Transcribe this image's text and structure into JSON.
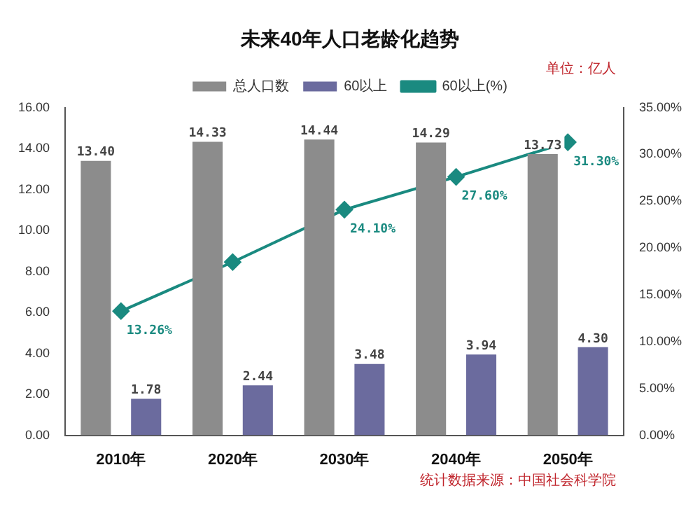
{
  "chart_data": {
    "type": "bar",
    "title": "未来40年人口老龄化趋势",
    "categories": [
      "2010年",
      "2020年",
      "2030年",
      "2040年",
      "2050年"
    ],
    "series": [
      {
        "name": "总人口数",
        "color": "#8c8c8c",
        "values": [
          13.4,
          14.33,
          14.44,
          14.29,
          13.73
        ],
        "value_labels": [
          "13.40",
          "14.33",
          "14.44",
          "14.29",
          "13.73"
        ]
      },
      {
        "name": "60以上",
        "color": "#6b6b9e",
        "values": [
          1.78,
          2.44,
          3.48,
          3.94,
          4.3
        ],
        "value_labels": [
          "1.78",
          "2.44",
          "3.48",
          "3.94",
          "4.30"
        ]
      },
      {
        "name": "60以上(%)",
        "type": "line",
        "axis": "y2",
        "color": "#1a8a80",
        "marker": "diamond",
        "values": [
          13.26,
          18.5,
          24.1,
          27.6,
          31.3
        ],
        "value_labels": [
          "13.26%",
          null,
          "24.10%",
          "27.60%",
          "31.30%"
        ]
      }
    ],
    "ylim": [
      0,
      16
    ],
    "yticks": [
      {
        "value": 0,
        "label": "0.00"
      },
      {
        "value": 2,
        "label": "2.00"
      },
      {
        "value": 4,
        "label": "4.00"
      },
      {
        "value": 6,
        "label": "6.00"
      },
      {
        "value": 8,
        "label": "8.00"
      },
      {
        "value": 10,
        "label": "10.00"
      },
      {
        "value": 12,
        "label": "12.00"
      },
      {
        "value": 14,
        "label": "14.00"
      },
      {
        "value": 16,
        "label": "16.00"
      }
    ],
    "y2lim": [
      0,
      35
    ],
    "y2ticks": [
      {
        "value": 0,
        "label": "0.00%"
      },
      {
        "value": 5,
        "label": "5.00%"
      },
      {
        "value": 10,
        "label": "10.00%"
      },
      {
        "value": 15,
        "label": "15.00%"
      },
      {
        "value": 20,
        "label": "20.00%"
      },
      {
        "value": 25,
        "label": "25.00%"
      },
      {
        "value": 30,
        "label": "30.00%"
      },
      {
        "value": 35,
        "label": "35.00%"
      }
    ],
    "grid": false,
    "legend": "top",
    "annotations": [
      "单位：亿人",
      "统计数据来源：中国社会科学院"
    ]
  }
}
